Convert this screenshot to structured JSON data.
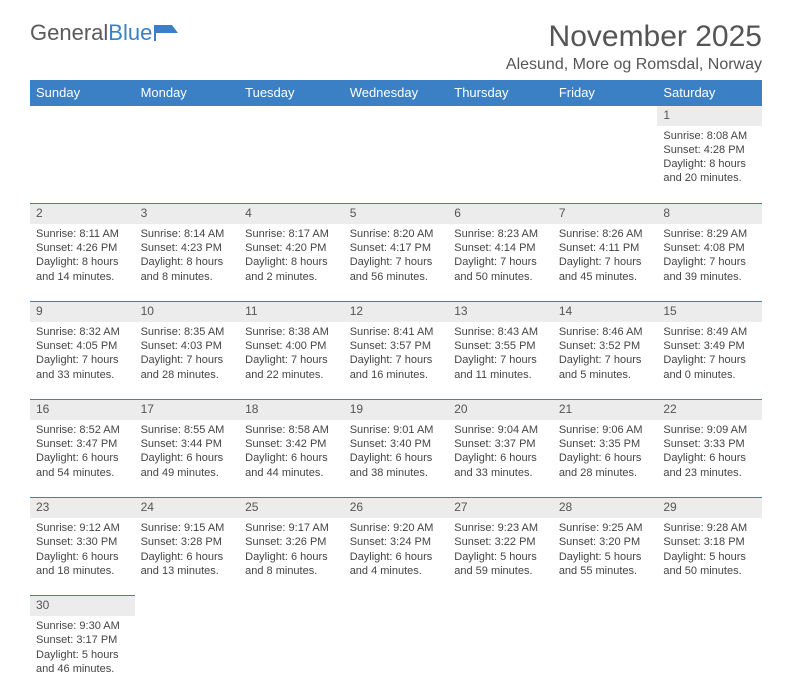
{
  "brand": {
    "part1": "General",
    "part2": "Blue"
  },
  "title": "November 2025",
  "location": "Alesund, More og Romsdal, Norway",
  "colors": {
    "header_bg": "#3b7fc4",
    "header_text": "#ffffff",
    "daynum_bg": "#ececec",
    "body_text": "#444444",
    "title_text": "#555555",
    "rule": "#3b7fc4"
  },
  "fonts": {
    "title_size": 30,
    "location_size": 16,
    "header_size": 13,
    "cell_size": 11
  },
  "weekdays": [
    "Sunday",
    "Monday",
    "Tuesday",
    "Wednesday",
    "Thursday",
    "Friday",
    "Saturday"
  ],
  "weeks": [
    [
      null,
      null,
      null,
      null,
      null,
      null,
      {
        "n": "1",
        "sr": "Sunrise: 8:08 AM",
        "ss": "Sunset: 4:28 PM",
        "dl": "Daylight: 8 hours and 20 minutes."
      }
    ],
    [
      {
        "n": "2",
        "sr": "Sunrise: 8:11 AM",
        "ss": "Sunset: 4:26 PM",
        "dl": "Daylight: 8 hours and 14 minutes."
      },
      {
        "n": "3",
        "sr": "Sunrise: 8:14 AM",
        "ss": "Sunset: 4:23 PM",
        "dl": "Daylight: 8 hours and 8 minutes."
      },
      {
        "n": "4",
        "sr": "Sunrise: 8:17 AM",
        "ss": "Sunset: 4:20 PM",
        "dl": "Daylight: 8 hours and 2 minutes."
      },
      {
        "n": "5",
        "sr": "Sunrise: 8:20 AM",
        "ss": "Sunset: 4:17 PM",
        "dl": "Daylight: 7 hours and 56 minutes."
      },
      {
        "n": "6",
        "sr": "Sunrise: 8:23 AM",
        "ss": "Sunset: 4:14 PM",
        "dl": "Daylight: 7 hours and 50 minutes."
      },
      {
        "n": "7",
        "sr": "Sunrise: 8:26 AM",
        "ss": "Sunset: 4:11 PM",
        "dl": "Daylight: 7 hours and 45 minutes."
      },
      {
        "n": "8",
        "sr": "Sunrise: 8:29 AM",
        "ss": "Sunset: 4:08 PM",
        "dl": "Daylight: 7 hours and 39 minutes."
      }
    ],
    [
      {
        "n": "9",
        "sr": "Sunrise: 8:32 AM",
        "ss": "Sunset: 4:05 PM",
        "dl": "Daylight: 7 hours and 33 minutes."
      },
      {
        "n": "10",
        "sr": "Sunrise: 8:35 AM",
        "ss": "Sunset: 4:03 PM",
        "dl": "Daylight: 7 hours and 28 minutes."
      },
      {
        "n": "11",
        "sr": "Sunrise: 8:38 AM",
        "ss": "Sunset: 4:00 PM",
        "dl": "Daylight: 7 hours and 22 minutes."
      },
      {
        "n": "12",
        "sr": "Sunrise: 8:41 AM",
        "ss": "Sunset: 3:57 PM",
        "dl": "Daylight: 7 hours and 16 minutes."
      },
      {
        "n": "13",
        "sr": "Sunrise: 8:43 AM",
        "ss": "Sunset: 3:55 PM",
        "dl": "Daylight: 7 hours and 11 minutes."
      },
      {
        "n": "14",
        "sr": "Sunrise: 8:46 AM",
        "ss": "Sunset: 3:52 PM",
        "dl": "Daylight: 7 hours and 5 minutes."
      },
      {
        "n": "15",
        "sr": "Sunrise: 8:49 AM",
        "ss": "Sunset: 3:49 PM",
        "dl": "Daylight: 7 hours and 0 minutes."
      }
    ],
    [
      {
        "n": "16",
        "sr": "Sunrise: 8:52 AM",
        "ss": "Sunset: 3:47 PM",
        "dl": "Daylight: 6 hours and 54 minutes."
      },
      {
        "n": "17",
        "sr": "Sunrise: 8:55 AM",
        "ss": "Sunset: 3:44 PM",
        "dl": "Daylight: 6 hours and 49 minutes."
      },
      {
        "n": "18",
        "sr": "Sunrise: 8:58 AM",
        "ss": "Sunset: 3:42 PM",
        "dl": "Daylight: 6 hours and 44 minutes."
      },
      {
        "n": "19",
        "sr": "Sunrise: 9:01 AM",
        "ss": "Sunset: 3:40 PM",
        "dl": "Daylight: 6 hours and 38 minutes."
      },
      {
        "n": "20",
        "sr": "Sunrise: 9:04 AM",
        "ss": "Sunset: 3:37 PM",
        "dl": "Daylight: 6 hours and 33 minutes."
      },
      {
        "n": "21",
        "sr": "Sunrise: 9:06 AM",
        "ss": "Sunset: 3:35 PM",
        "dl": "Daylight: 6 hours and 28 minutes."
      },
      {
        "n": "22",
        "sr": "Sunrise: 9:09 AM",
        "ss": "Sunset: 3:33 PM",
        "dl": "Daylight: 6 hours and 23 minutes."
      }
    ],
    [
      {
        "n": "23",
        "sr": "Sunrise: 9:12 AM",
        "ss": "Sunset: 3:30 PM",
        "dl": "Daylight: 6 hours and 18 minutes."
      },
      {
        "n": "24",
        "sr": "Sunrise: 9:15 AM",
        "ss": "Sunset: 3:28 PM",
        "dl": "Daylight: 6 hours and 13 minutes."
      },
      {
        "n": "25",
        "sr": "Sunrise: 9:17 AM",
        "ss": "Sunset: 3:26 PM",
        "dl": "Daylight: 6 hours and 8 minutes."
      },
      {
        "n": "26",
        "sr": "Sunrise: 9:20 AM",
        "ss": "Sunset: 3:24 PM",
        "dl": "Daylight: 6 hours and 4 minutes."
      },
      {
        "n": "27",
        "sr": "Sunrise: 9:23 AM",
        "ss": "Sunset: 3:22 PM",
        "dl": "Daylight: 5 hours and 59 minutes."
      },
      {
        "n": "28",
        "sr": "Sunrise: 9:25 AM",
        "ss": "Sunset: 3:20 PM",
        "dl": "Daylight: 5 hours and 55 minutes."
      },
      {
        "n": "29",
        "sr": "Sunrise: 9:28 AM",
        "ss": "Sunset: 3:18 PM",
        "dl": "Daylight: 5 hours and 50 minutes."
      }
    ],
    [
      {
        "n": "30",
        "sr": "Sunrise: 9:30 AM",
        "ss": "Sunset: 3:17 PM",
        "dl": "Daylight: 5 hours and 46 minutes."
      },
      null,
      null,
      null,
      null,
      null,
      null
    ]
  ]
}
